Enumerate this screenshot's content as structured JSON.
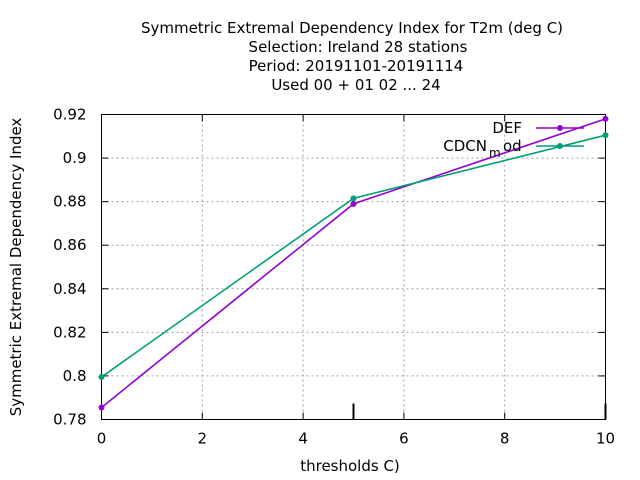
{
  "chart_data": {
    "type": "line",
    "title_lines": [
      "Symmetric Extremal Dependency Index  for T2m (deg C)",
      "Selection: Ireland     28 stations",
      "Period: 20191101-20191114",
      "Used  00 + 01 02 ... 24"
    ],
    "xlabel": "thresholds C)",
    "ylabel": "Symmetric Extremal Dependency Index",
    "xlim": [
      0,
      10
    ],
    "ylim": [
      0.78,
      0.92
    ],
    "x_ticks": [
      0,
      2,
      4,
      6,
      8,
      10
    ],
    "x_tick_labels": [
      "0",
      "2",
      "4",
      "6",
      "8",
      "10"
    ],
    "y_ticks": [
      0.78,
      0.8,
      0.82,
      0.84,
      0.86,
      0.88,
      0.9,
      0.92
    ],
    "y_tick_labels": [
      "0.78",
      "0.8",
      "0.82",
      "0.84",
      "0.86",
      "0.88",
      "0.9",
      "0.92"
    ],
    "extra_x_ticks": [
      5,
      10
    ],
    "grid": true,
    "legend_position": "top-right",
    "legend_extra_text": "od",
    "legend_extra_sub": "m",
    "series": [
      {
        "name": "DEF",
        "color": "#9400d3",
        "x": [
          0,
          5,
          10
        ],
        "y": [
          0.7855,
          0.879,
          0.918
        ]
      },
      {
        "name": "CDCN",
        "color": "#009e73",
        "x": [
          0,
          5,
          10
        ],
        "y": [
          0.7995,
          0.8815,
          0.9105
        ]
      }
    ]
  }
}
